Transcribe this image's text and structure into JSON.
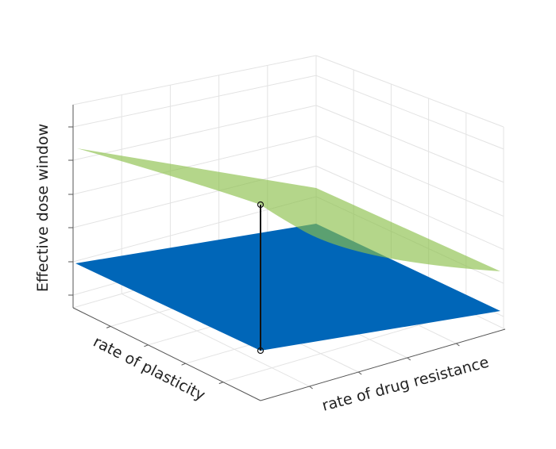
{
  "chart_data": {
    "type": "surface",
    "zlabel": "Effective dose window",
    "xlabel": "rate of plasticity",
    "ylabel": "rate of drug resistance"
  }
}
